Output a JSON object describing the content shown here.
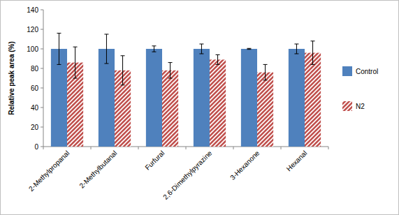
{
  "chart_data": {
    "type": "bar",
    "y_label": "Relative peak area (%)",
    "categories": [
      "2-Methylpropanal",
      "2-Methylbutanal",
      "Furfural",
      "2,6-Dimethylpyrazine",
      "3-Hexanone",
      "Hexanal"
    ],
    "series": [
      {
        "name": "Control",
        "color": "#4f81bd",
        "values": [
          100,
          100,
          100,
          100,
          100,
          100
        ],
        "errors": [
          16,
          15,
          3,
          5,
          0.5,
          5
        ]
      },
      {
        "name": "N2",
        "color": "#c0504d",
        "values": [
          86,
          78,
          78,
          89,
          76,
          96
        ],
        "errors": [
          16,
          15,
          8,
          5,
          8,
          12
        ]
      }
    ],
    "ylim": [
      0,
      140
    ],
    "yticks": [
      0,
      20,
      40,
      60,
      80,
      100,
      120,
      140
    ],
    "grid": false,
    "legend": "right"
  }
}
